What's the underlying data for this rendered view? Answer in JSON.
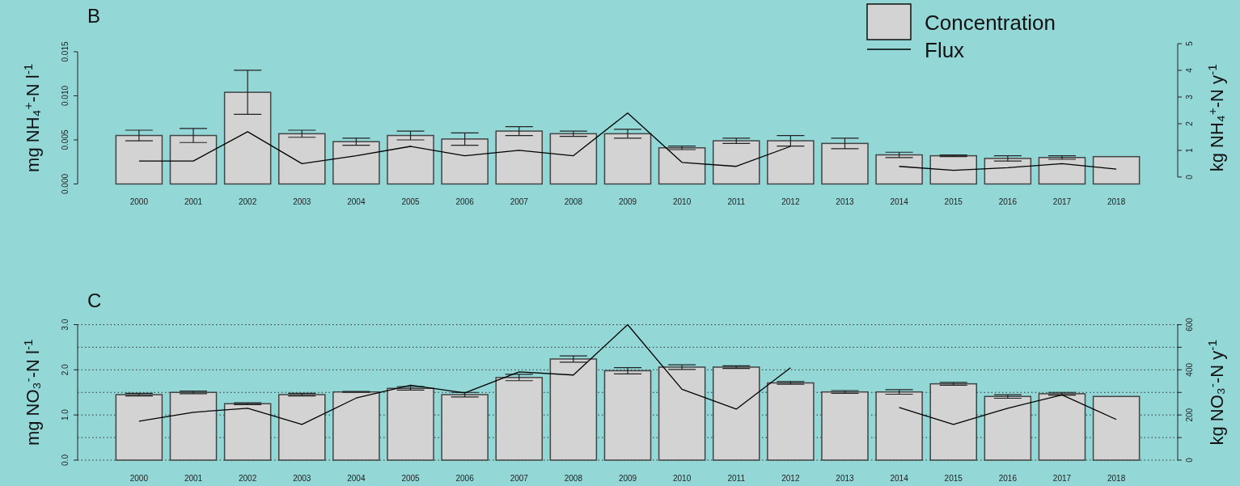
{
  "chart_data": [
    {
      "type": "bar",
      "title": "B",
      "ylabel": "mg NH₄$^{+}$-N l$^{-1}$",
      "y2label": "kg NH₄$^{+}$-N y$^{-1}$",
      "categories": [
        "2000",
        "2001",
        "2002",
        "2003",
        "2004",
        "2005",
        "2006",
        "2007",
        "2008",
        "2009",
        "2010",
        "2011",
        "2012",
        "2013",
        "2014",
        "2015",
        "2016",
        "2017",
        "2018"
      ],
      "series": [
        {
          "name": "Concentration",
          "color": "#d3d3d3",
          "values": [
            0.0055,
            0.0055,
            0.0104,
            0.0057,
            0.0048,
            0.0055,
            0.0051,
            0.006,
            0.0057,
            0.0057,
            0.0041,
            0.0049,
            0.0049,
            0.0046,
            0.0033,
            0.0032,
            0.0029,
            0.003,
            0.0031
          ],
          "errors": [
            0.0006,
            0.0008,
            0.0025,
            0.0004,
            0.0004,
            0.0005,
            0.0007,
            0.0005,
            0.0003,
            0.0005,
            0.0002,
            0.0003,
            0.0006,
            0.0006,
            0.0003,
            0.0001,
            0.0003,
            0.0002,
            null
          ]
        },
        {
          "name": "Flux",
          "type": "line",
          "axis": "y2",
          "color": "#000000",
          "values": [
            0.6,
            0.6,
            1.7,
            0.5,
            0.8,
            1.15,
            0.8,
            1.0,
            0.8,
            2.4,
            0.55,
            0.4,
            1.15,
            null,
            0.4,
            0.25,
            0.35,
            0.5,
            0.3
          ]
        }
      ],
      "ylim": [
        0,
        0.015
      ],
      "yticks": [
        {
          "value": 0,
          "label": "0.000"
        },
        {
          "value": 0.005,
          "label": "0.005"
        },
        {
          "value": 0.01,
          "label": "0.010"
        },
        {
          "value": 0.015,
          "label": "0.015"
        }
      ],
      "y2lim": [
        -0.26,
        5
      ],
      "y2ticks": [
        0,
        1,
        2,
        3,
        4,
        5
      ],
      "legend": "top right",
      "grid": false
    },
    {
      "type": "bar",
      "title": "C",
      "ylabel": "mg NO₃$^{-}$-N l$^{-1}$",
      "y2label": "kg NO₃$^{-}$-N y$^{-1}$",
      "categories": [
        "2000",
        "2001",
        "2002",
        "2003",
        "2004",
        "2005",
        "2006",
        "2007",
        "2008",
        "2009",
        "2010",
        "2011",
        "2012",
        "2013",
        "2014",
        "2015",
        "2016",
        "2017",
        "2018"
      ],
      "series": [
        {
          "color": "#d3d3d3",
          "values": [
            1.45,
            1.5,
            1.25,
            1.45,
            1.51,
            1.59,
            1.45,
            1.83,
            2.24,
            1.98,
            2.06,
            2.06,
            1.71,
            1.51,
            1.51,
            1.69,
            1.41,
            1.47,
            1.41
          ],
          "errors": [
            0.03,
            0.03,
            0.02,
            0.03,
            0.01,
            0.04,
            0.05,
            0.07,
            0.07,
            0.07,
            0.05,
            0.03,
            0.03,
            0.03,
            0.05,
            0.03,
            0.04,
            0.03,
            null
          ]
        },
        {
          "type": "line",
          "axis": "y2",
          "color": "#000000",
          "values": [
            172,
            212,
            230,
            158,
            275,
            332,
            298,
            391,
            377,
            600,
            314,
            226,
            409,
            null,
            233,
            158,
            230,
            289,
            180
          ]
        }
      ],
      "ylim": [
        0,
        3
      ],
      "yticks": [
        {
          "value": 0,
          "label": "0.0"
        },
        {
          "value": 1,
          "label": "1.0"
        },
        {
          "value": 2,
          "label": "2.0"
        },
        {
          "value": 3,
          "label": "3.0"
        }
      ],
      "y2lim": [
        0,
        600
      ],
      "y2ticks": [
        0,
        {
          "value": 100,
          "label": null
        },
        200,
        {
          "value": 300,
          "label": null
        },
        400,
        {
          "value": 500,
          "label": null
        },
        600
      ],
      "legend": false,
      "grid": "y2"
    }
  ]
}
